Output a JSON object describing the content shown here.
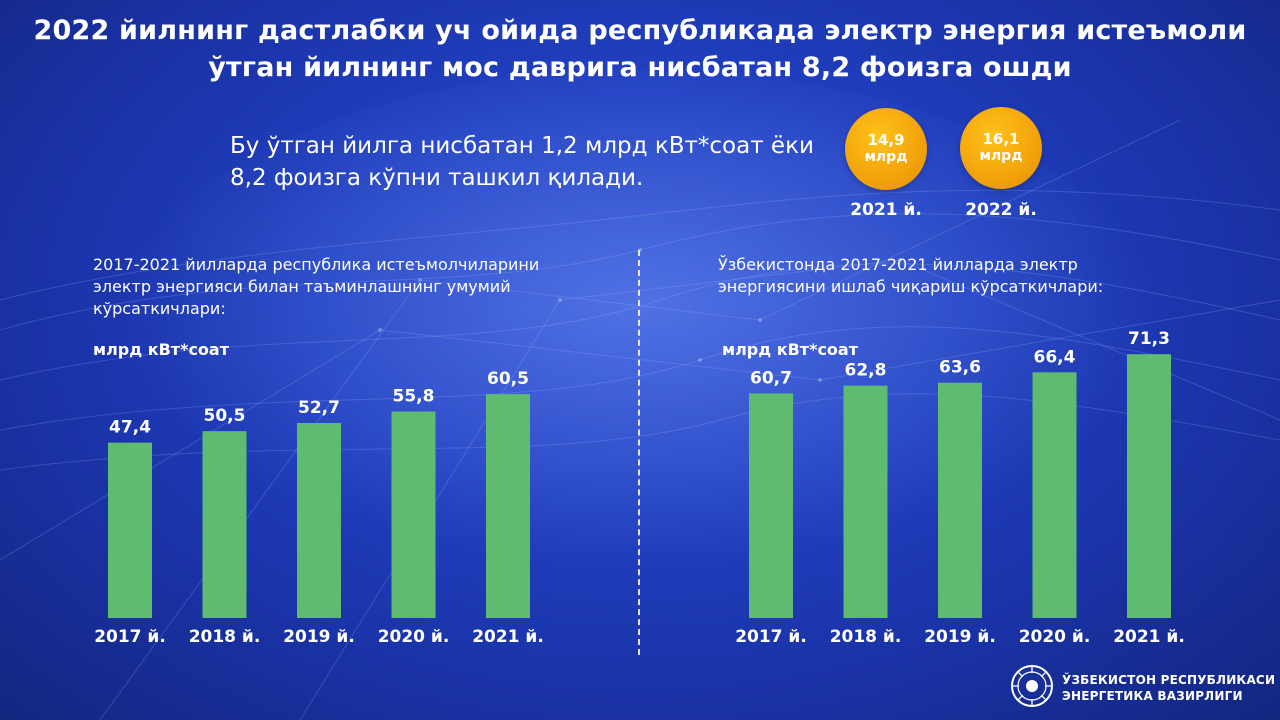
{
  "header": {
    "title": "2022 йилнинг дастлабки уч ойида республикада электр энергия истеъмоли ўтган йилнинг мос даврига нисбатан 8,2 фоизга ошди"
  },
  "highlight": {
    "text": "Бу ўтган йилга нисбатан 1,2 млрд кВт*соат ёки 8,2 фоизга кўпни ташкил қилади.",
    "badges": [
      {
        "value": "14,9",
        "unit": "млрд",
        "year": "2021 й."
      },
      {
        "value": "16,1",
        "unit": "млрд",
        "year": "2022 й."
      }
    ]
  },
  "colors": {
    "bar": "#5fbb6f",
    "badge": "#f2a30a",
    "background": "#2140c2"
  },
  "chart_data": [
    {
      "type": "bar",
      "title": "2017-2021 йилларда республика истеъмолчиларини электр энергияси билан таъминлашнинг умумий кўрсаткичлари:",
      "ylabel": "млрд кВт*соат",
      "categories": [
        "2017 й.",
        "2018 й.",
        "2019 й.",
        "2020 й.",
        "2021 й."
      ],
      "values": [
        47.4,
        50.5,
        52.7,
        55.8,
        60.5
      ],
      "value_labels": [
        "47,4",
        "50,5",
        "52,7",
        "55,8",
        "60,5"
      ],
      "grid": false
    },
    {
      "type": "bar",
      "title": "Ўзбекистонда 2017-2021 йилларда электр энергиясини ишлаб чиқариш кўрсаткичлари:",
      "ylabel": "млрд кВт*соат",
      "categories": [
        "2017 й.",
        "2018 й.",
        "2019 й.",
        "2020 й.",
        "2021 й."
      ],
      "values": [
        60.7,
        62.8,
        63.6,
        66.4,
        71.3
      ],
      "value_labels": [
        "60,7",
        "62,8",
        "63,6",
        "66,4",
        "71,3"
      ],
      "grid": false
    }
  ],
  "footer": {
    "org_line1": "ЎЗБЕКИСТОН РЕСПУБЛИКАСИ",
    "org_line2": "ЭНЕРГЕТИКА ВАЗИРЛИГИ",
    "logo_icon": "ministry-emblem-icon"
  }
}
